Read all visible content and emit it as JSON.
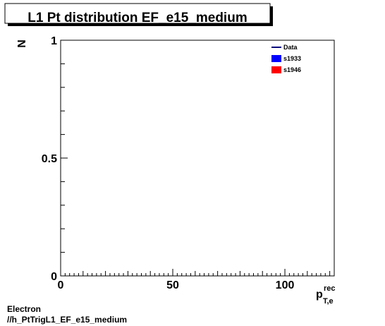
{
  "chart_data": {
    "type": "line",
    "title": "L1 Pt distribution EF_e15_medium",
    "ylabel": "N",
    "xlabel_main": "p",
    "xlabel_sup": "rec",
    "xlabel_sub": "T,e",
    "xlim": [
      0,
      122
    ],
    "ylim": [
      0,
      1
    ],
    "xticks_major": [
      0,
      50,
      100
    ],
    "xtick_labels": [
      "0",
      "50",
      "100"
    ],
    "yticks_major": [
      0,
      0.5,
      1
    ],
    "ytick_labels": [
      "0",
      "0.5",
      "1"
    ],
    "grid": false,
    "legend_position": "top-right",
    "series": [
      {
        "name": "Data",
        "style": "line",
        "color": "#00007f",
        "x": [],
        "y": []
      },
      {
        "name": "s1933",
        "style": "fill",
        "color": "#0000ff",
        "x": [],
        "y": []
      },
      {
        "name": "s1946",
        "style": "fill",
        "color": "#ff0000",
        "x": [],
        "y": []
      }
    ]
  },
  "footer": {
    "line1": "Electron",
    "line2": "//h_PtTrigL1_EF_e15_medium"
  }
}
